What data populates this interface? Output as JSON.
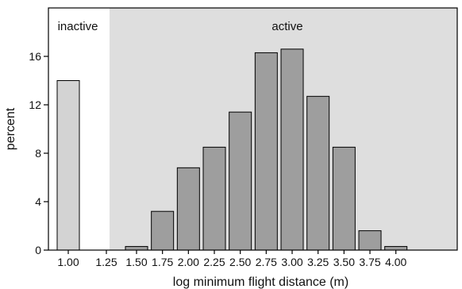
{
  "chart_data": {
    "type": "bar",
    "xlabel": "log minimum flight distance (m)",
    "ylabel": "percent",
    "ylim": [
      0,
      20
    ],
    "yticks": [
      0,
      4,
      8,
      12,
      16
    ],
    "categories": [
      "1.00",
      "1.25",
      "1.50",
      "1.75",
      "2.00",
      "2.25",
      "2.50",
      "2.75",
      "3.00",
      "3.25",
      "3.50",
      "3.75",
      "4.00"
    ],
    "values": [
      14.0,
      0,
      0.3,
      3.2,
      6.8,
      8.5,
      11.4,
      16.3,
      16.6,
      12.7,
      8.5,
      1.6,
      0.3
    ],
    "regions": [
      {
        "label": "inactive",
        "from_index": 0,
        "to_index": 1,
        "shaded": false
      },
      {
        "label": "active",
        "from_index": 1,
        "to_index": 12,
        "shaded": true
      }
    ],
    "colors": {
      "inactive_bar": "#d3d3d3",
      "active_bar": "#9e9e9e",
      "active_region": "#dedede",
      "bar_stroke": "#000000"
    },
    "grid": false,
    "legend": "none"
  }
}
